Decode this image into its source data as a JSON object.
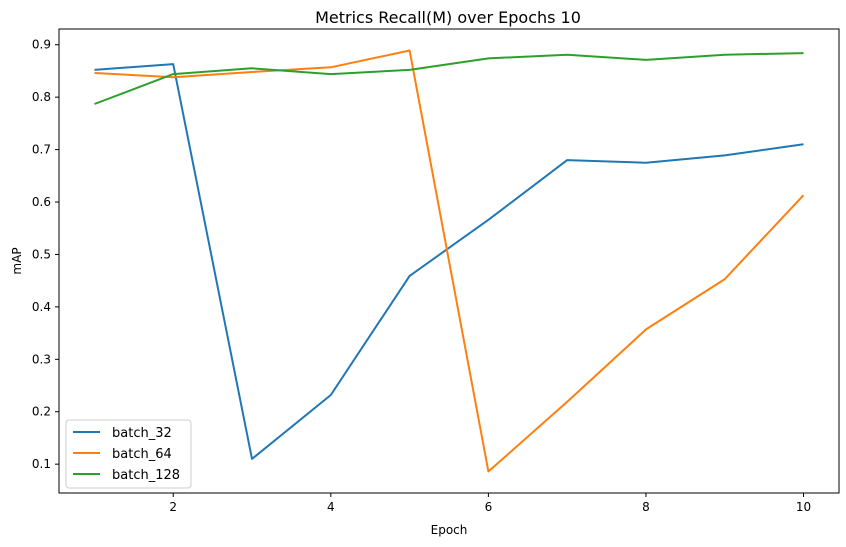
{
  "chart_data": {
    "type": "line",
    "title": "Metrics Recall(M) over Epochs 10",
    "xlabel": "Epoch",
    "ylabel": "mAP",
    "x": [
      1,
      2,
      3,
      4,
      5,
      6,
      7,
      8,
      9,
      10
    ],
    "xlim": [
      0.55,
      10.45
    ],
    "ylim": [
      0.045,
      0.93
    ],
    "xticks": [
      2,
      4,
      6,
      8,
      10
    ],
    "yticks": [
      0.1,
      0.2,
      0.3,
      0.4,
      0.5,
      0.6,
      0.7,
      0.8,
      0.9
    ],
    "ytick_labels": [
      "0.1",
      "0.2",
      "0.3",
      "0.4",
      "0.5",
      "0.6",
      "0.7",
      "0.8",
      "0.9"
    ],
    "grid": false,
    "legend_position": "lower-left",
    "series": [
      {
        "name": "batch_32",
        "color": "#1f77b4",
        "values": [
          0.852,
          0.863,
          0.11,
          0.232,
          0.459,
          0.566,
          0.68,
          0.675,
          0.689,
          0.71
        ]
      },
      {
        "name": "batch_64",
        "color": "#ff7f0e",
        "values": [
          0.846,
          0.838,
          0.848,
          0.857,
          0.889,
          0.086,
          0.219,
          0.357,
          0.453,
          0.613
        ]
      },
      {
        "name": "batch_128",
        "color": "#2ca02c",
        "values": [
          0.787,
          0.844,
          0.855,
          0.844,
          0.852,
          0.874,
          0.881,
          0.871,
          0.881,
          0.884
        ]
      }
    ]
  }
}
